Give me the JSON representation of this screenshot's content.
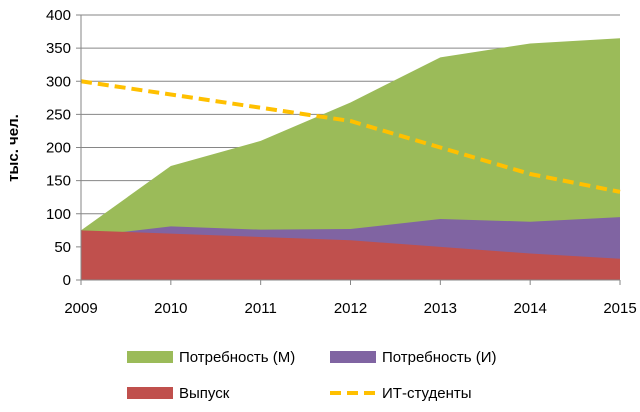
{
  "chart_data": {
    "type": "area",
    "title": "",
    "xlabel": "",
    "ylabel": "тыс. чел.",
    "x": [
      2009,
      2010,
      2011,
      2012,
      2013,
      2014,
      2015
    ],
    "ylim": [
      0,
      400
    ],
    "yticks": [
      0,
      50,
      100,
      150,
      200,
      250,
      300,
      350,
      400
    ],
    "grid": true,
    "legend_position": "bottom",
    "series": [
      {
        "name": "Потребность (М)",
        "kind": "area",
        "color": "#9bbb59",
        "values": [
          75,
          172,
          210,
          268,
          336,
          357,
          365
        ]
      },
      {
        "name": "Потребность (И)",
        "kind": "area",
        "color": "#8064a2",
        "values": [
          65,
          81,
          76,
          77,
          92,
          88,
          95
        ]
      },
      {
        "name": "Выпуск",
        "kind": "area",
        "color": "#c0504d",
        "values": [
          75,
          70,
          65,
          60,
          50,
          40,
          32
        ]
      },
      {
        "name": "ИТ-студенты",
        "kind": "line",
        "style": "dashed",
        "color": "#ffc000",
        "values": [
          300,
          280,
          260,
          240,
          200,
          160,
          133
        ]
      }
    ]
  }
}
